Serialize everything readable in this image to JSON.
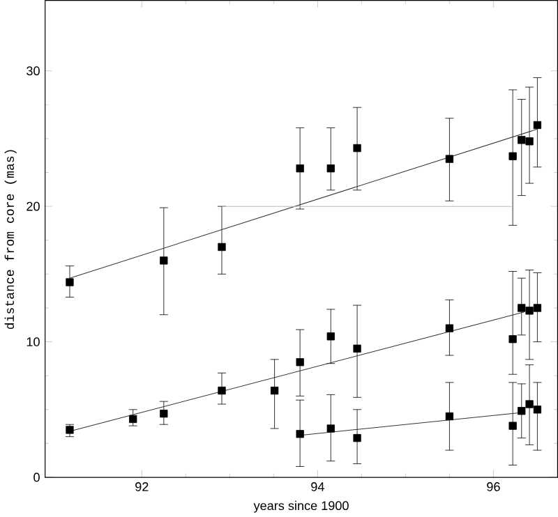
{
  "chart_data": {
    "type": "scatter",
    "xlabel": "years since 1900",
    "ylabel": "distance from core (mas)",
    "xlim": [
      90.9,
      96.73
    ],
    "ylim": [
      0,
      35.2
    ],
    "xticks": [
      92,
      94,
      96
    ],
    "yticks": [
      0,
      10,
      20,
      30
    ],
    "grid": false,
    "marker": "square",
    "series": [
      {
        "color": "#000000",
        "x": [
          91.18,
          92.25,
          92.91,
          93.8,
          94.15,
          94.45,
          95.5,
          96.22,
          96.32,
          96.41,
          96.5
        ],
        "values": [
          14.4,
          16.0,
          17.0,
          22.8,
          22.8,
          24.3,
          23.5,
          23.7,
          24.9,
          24.8,
          26.0
        ],
        "errors": [
          [
            13.3,
            15.6
          ],
          [
            12.0,
            19.9
          ],
          [
            15.0,
            20.0
          ],
          [
            19.8,
            25.8
          ],
          [
            21.2,
            25.8
          ],
          [
            21.2,
            27.3
          ],
          [
            20.4,
            26.5
          ],
          [
            18.6,
            28.6
          ],
          [
            20.8,
            27.9
          ],
          [
            21.7,
            28.8
          ],
          [
            22.9,
            29.5
          ]
        ]
      },
      {
        "color": "#000000",
        "x": [
          91.18,
          91.9,
          92.25,
          92.91,
          93.51,
          93.8,
          94.15,
          94.45,
          95.5,
          96.22,
          96.32,
          96.41,
          96.5
        ],
        "values": [
          3.5,
          4.3,
          4.7,
          6.4,
          6.4,
          8.5,
          10.4,
          9.5,
          11.0,
          10.2,
          12.5,
          12.3,
          12.5
        ],
        "errors": [
          [
            3.0,
            3.9
          ],
          [
            3.8,
            5.0
          ],
          [
            3.9,
            5.6
          ],
          [
            5.4,
            7.7
          ],
          [
            3.6,
            8.7
          ],
          [
            6.0,
            10.9
          ],
          [
            8.4,
            12.4
          ],
          [
            5.9,
            12.7
          ],
          [
            9.0,
            13.1
          ],
          [
            7.6,
            15.2
          ],
          [
            10.5,
            14.7
          ],
          [
            8.7,
            15.3
          ],
          [
            10.0,
            15.1
          ]
        ]
      },
      {
        "color": "#000000",
        "x": [
          93.8,
          94.15,
          94.45,
          95.5,
          96.22,
          96.32,
          96.41,
          96.5
        ],
        "values": [
          3.2,
          3.6,
          2.9,
          4.5,
          3.8,
          4.9,
          5.4,
          5.0
        ],
        "errors": [
          [
            0.8,
            5.7
          ],
          [
            1.2,
            6.1
          ],
          [
            1.0,
            5.0
          ],
          [
            2.0,
            7.0
          ],
          [
            0.9,
            7.0
          ],
          [
            2.9,
            6.9
          ],
          [
            2.4,
            8.3
          ],
          [
            2.0,
            7.0
          ]
        ]
      },
      {
        "type": "line",
        "color": "#333333",
        "marker": "none",
        "x": [
          91.18,
          96.5
        ],
        "values": [
          14.7,
          25.7
        ]
      },
      {
        "type": "line",
        "color": "#333333",
        "marker": "none",
        "x": [
          91.18,
          96.35
        ],
        "values": [
          3.4,
          12.2
        ]
      },
      {
        "type": "line",
        "color": "#333333",
        "marker": "none",
        "x": [
          93.8,
          96.35
        ],
        "values": [
          3.1,
          4.8
        ]
      },
      {
        "type": "line",
        "color": "#bbbbbb",
        "marker": "none",
        "x": [
          92.91,
          96.22
        ],
        "values": [
          20,
          20
        ]
      }
    ]
  }
}
